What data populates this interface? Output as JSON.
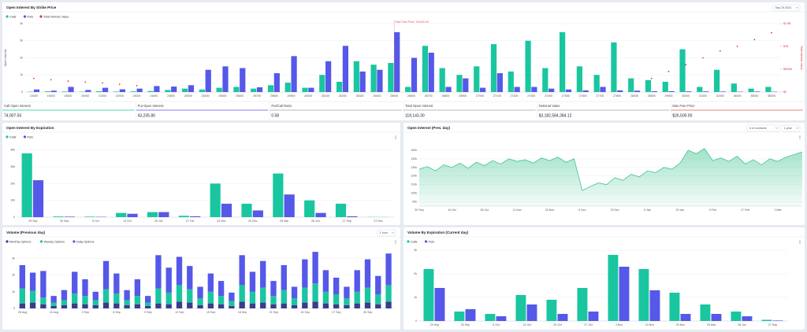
{
  "chart_data": [
    {
      "type": "bar",
      "title": "Open Interest By Strike Price",
      "controls": [
        "Sep 29 2023"
      ],
      "ylabel": "Open Interest",
      "y2label": "Total Intrinsic Value",
      "grid": true,
      "categories": [
        "10000",
        "15000",
        "18000",
        "20000",
        "21000",
        "22000",
        "23000",
        "24000",
        "24500",
        "25000",
        "25400",
        "25500",
        "25600",
        "25700",
        "25800",
        "25900",
        "26000",
        "26100",
        "26200",
        "26300",
        "26400",
        "26500",
        "26600",
        "26700",
        "26800",
        "26900",
        "27000",
        "27100",
        "27200",
        "27300",
        "27400",
        "27500",
        "27600",
        "27700",
        "27800",
        "28000",
        "28500",
        "29000",
        "30000",
        "31000",
        "32000",
        "34000",
        "35000",
        "36000"
      ],
      "series": [
        {
          "name": "Calls",
          "color": "#19c6a0",
          "values": [
            20,
            40,
            30,
            20,
            50,
            30,
            40,
            60,
            120,
            200,
            150,
            250,
            300,
            200,
            400,
            550,
            250,
            1000,
            600,
            1800,
            1600,
            1700,
            300,
            2700,
            1400,
            1000,
            1500,
            2800,
            1200,
            3000,
            1400,
            3500,
            1500,
            1000,
            2900,
            800,
            700,
            600,
            2500,
            300,
            1300,
            500,
            200,
            300
          ]
        },
        {
          "name": "Puts",
          "color": "#5558e8",
          "values": [
            150,
            80,
            300,
            120,
            250,
            160,
            200,
            350,
            320,
            400,
            1300,
            1500,
            1400,
            280,
            1100,
            2100,
            250,
            1800,
            2700,
            1200,
            1300,
            3500,
            2000,
            2300,
            300,
            800,
            250,
            1100,
            300,
            300,
            200,
            150,
            100,
            300,
            100,
            80,
            50,
            50,
            40,
            40,
            30,
            20,
            30,
            20
          ]
        },
        {
          "name": "Total Intrinsic Value",
          "color": "#d63a3a",
          "type": "scatter",
          "axis": "y2",
          "values": [
            300,
            270,
            240,
            220,
            200,
            170,
            140,
            null,
            null,
            null,
            null,
            null,
            null,
            null,
            null,
            null,
            null,
            null,
            null,
            null,
            null,
            null,
            null,
            null,
            null,
            null,
            null,
            null,
            null,
            null,
            null,
            null,
            null,
            null,
            null,
            null,
            300,
            450,
            600,
            750,
            900,
            1000,
            1150,
            1300
          ]
        }
      ],
      "ylim": [
        0,
        4000
      ],
      "yticks": [
        0,
        {
          "value": 1000,
          "label": "1k"
        },
        {
          "value": 2000,
          "label": "2k"
        },
        {
          "value": 3000,
          "label": "3k"
        },
        {
          "value": 4000,
          "label": "4k"
        }
      ],
      "y2lim": [
        0,
        1500
      ],
      "y2ticks": [
        {
          "value": 0,
          "label": "$0"
        },
        {
          "value": 500,
          "label": "$500M"
        },
        {
          "value": 1000,
          "label": "$1B"
        },
        {
          "value": 1500,
          "label": "$1.5B"
        }
      ],
      "annotation": {
        "x": 26500,
        "label": "Max Pain Price: 26,500.00"
      }
    },
    {
      "type": "bar",
      "title": "Open Interest By Expiration",
      "grid": true,
      "categories": [
        "29 Sep",
        "30 Sep",
        "6 Oct",
        "13 Oct",
        "20 Oct",
        "27 Oct",
        "24 Nov",
        "29 Dec",
        "29 Mar",
        "28 Jun",
        "27 Sep",
        "27 Dec"
      ],
      "series": [
        {
          "name": "Calls",
          "color": "#19c6a0",
          "values": [
            38000,
            400,
            300,
            2500,
            3000,
            800,
            20000,
            8000,
            26000,
            10000,
            8000,
            100
          ]
        },
        {
          "name": "Puts",
          "color": "#5558e8",
          "values": [
            22000,
            300,
            200,
            2000,
            3000,
            500,
            8000,
            4000,
            13500,
            2500,
            500,
            50
          ]
        }
      ],
      "ylim": [
        0,
        45000
      ],
      "yticks": [
        0,
        {
          "value": 10000,
          "label": "10k"
        },
        {
          "value": 20000,
          "label": "20k"
        },
        {
          "value": 30000,
          "label": "30k"
        },
        {
          "value": 40000,
          "label": "40k"
        }
      ]
    },
    {
      "type": "area",
      "title": "Open Interest (Prev. day)",
      "controls": [
        "# of contracts",
        "1 year"
      ],
      "grid": true,
      "color": "#2fbf86",
      "categories": [
        "30 Sep",
        null,
        null,
        null,
        "14 Oct",
        null,
        null,
        null,
        "28 Oct",
        null,
        null,
        null,
        "11 Nov",
        null,
        null,
        null,
        "25 Nov",
        null,
        null,
        null,
        "9 Dec",
        null,
        null,
        null,
        "23 Dec",
        null,
        null,
        null,
        "6 Jan",
        null,
        null,
        null,
        "20 Jan",
        null,
        null,
        null,
        "3 Feb",
        null,
        null,
        null,
        "17 Feb",
        null,
        null,
        null,
        "2 Mar",
        null,
        null,
        null
      ],
      "values": [
        128000,
        131000,
        126000,
        133000,
        130000,
        135000,
        129000,
        136000,
        132000,
        138000,
        134000,
        140000,
        137000,
        139000,
        135000,
        141000,
        138000,
        142000,
        136000,
        140000,
        103000,
        108000,
        112000,
        110000,
        118000,
        115000,
        122000,
        119000,
        126000,
        124000,
        130000,
        128000,
        135000,
        150000,
        146000,
        152000,
        138000,
        141000,
        137000,
        143000,
        134000,
        139000,
        133000,
        140000,
        137000,
        142000,
        145000,
        148000
      ],
      "ylim": [
        85000,
        160000
      ],
      "yticks": [
        {
          "value": 90000,
          "label": "90k"
        },
        {
          "value": 100000,
          "label": "100k"
        },
        {
          "value": 110000,
          "label": "110k"
        },
        {
          "value": 120000,
          "label": "120k"
        },
        {
          "value": 130000,
          "label": "130k"
        },
        {
          "value": 140000,
          "label": "140k"
        },
        {
          "value": 150000,
          "label": "150k"
        }
      ]
    },
    {
      "type": "bar",
      "stacked": true,
      "title": "Volume (Previous day)",
      "controls": [
        "1 hour"
      ],
      "grid": true,
      "categories": [
        "28 Aug",
        null,
        null,
        "31 Aug",
        null,
        null,
        "3 Sep",
        null,
        null,
        "6 Sep",
        null,
        null,
        "9 Sep",
        null,
        null,
        "12 Sep",
        null,
        null,
        "15 Sep",
        null,
        null,
        "18 Sep",
        null,
        null,
        "21 Sep",
        null,
        null,
        "24 Sep",
        null,
        null,
        "27 Sep",
        null,
        null,
        "30 Sep",
        null,
        null
      ],
      "series": [
        {
          "name": "Monthly Options",
          "color": "#3a3c8c",
          "values": [
            300,
            350,
            250,
            150,
            200,
            300,
            250,
            200,
            350,
            300,
            200,
            250,
            150,
            300,
            250,
            400,
            350,
            200,
            300,
            250,
            150,
            400,
            300,
            350,
            250,
            300,
            200,
            350,
            400,
            300,
            250,
            200,
            300,
            350,
            250,
            400
          ]
        },
        {
          "name": "Weekly Options",
          "color": "#19c6a0",
          "values": [
            900,
            700,
            400,
            200,
            300,
            600,
            500,
            300,
            800,
            600,
            300,
            500,
            200,
            900,
            700,
            1000,
            800,
            400,
            700,
            500,
            300,
            1000,
            700,
            900,
            500,
            800,
            400,
            900,
            1100,
            700,
            600,
            400,
            700,
            900,
            600,
            1000
          ]
        },
        {
          "name": "Daily Options",
          "color": "#5558e8",
          "values": [
            1400,
            1100,
            1600,
            400,
            600,
            1300,
            1000,
            500,
            1700,
            1200,
            600,
            1000,
            400,
            2000,
            1500,
            1700,
            1400,
            700,
            1100,
            900,
            500,
            1800,
            1200,
            1600,
            900,
            1500,
            700,
            1700,
            1900,
            1300,
            1000,
            700,
            1300,
            1700,
            1100,
            1900
          ]
        }
      ],
      "ylim": [
        0,
        3500
      ],
      "yticks": [
        0,
        {
          "value": 1000,
          "label": "1k"
        },
        {
          "value": 2000,
          "label": "2k"
        },
        {
          "value": 3000,
          "label": "3k"
        }
      ]
    },
    {
      "type": "bar",
      "title": "Volume By Expiration (Current day)",
      "grid": true,
      "categories": [
        "29 Sep",
        "30 Sep",
        "6 Oct",
        "13 Oct",
        "20 Oct",
        "27 Oct",
        "3 Nov",
        "24 Nov",
        "29 Dec",
        "29 Mar",
        "28 Jun",
        "27 Sep"
      ],
      "series": [
        {
          "name": "Calls",
          "color": "#19c6a0",
          "values": [
            2200,
            400,
            300,
            1100,
            900,
            1400,
            2800,
            2200,
            1200,
            700,
            400,
            50
          ]
        },
        {
          "name": "Puts",
          "color": "#5558e8",
          "values": [
            1400,
            500,
            200,
            700,
            300,
            400,
            2300,
            1300,
            300,
            300,
            200,
            20
          ]
        }
      ],
      "ylim": [
        0,
        3000
      ],
      "yticks": [
        0,
        {
          "value": 1000,
          "label": "1k"
        },
        {
          "value": 2000,
          "label": "2k"
        },
        {
          "value": 3000,
          "label": "3k"
        }
      ]
    }
  ],
  "stats": [
    {
      "label": "Call Open Interest",
      "value": "74,907.50",
      "color": "#19c6a0"
    },
    {
      "label": "Put Open Interest",
      "value": "43,235.80",
      "color": "#5558e8"
    },
    {
      "label": "Put/Call Ratio",
      "value": "0.58",
      "color": "#9aa3b5"
    },
    {
      "label": "Total Open Interest",
      "value": "118,143.30",
      "color": "#9aa3b5"
    },
    {
      "label": "Notional Value",
      "value": "$3,182,584,384.12",
      "color": "#9aa3b5"
    },
    {
      "label": "Max Pain Price",
      "value": "$26,500.00",
      "color": "#e05a5a"
    }
  ]
}
